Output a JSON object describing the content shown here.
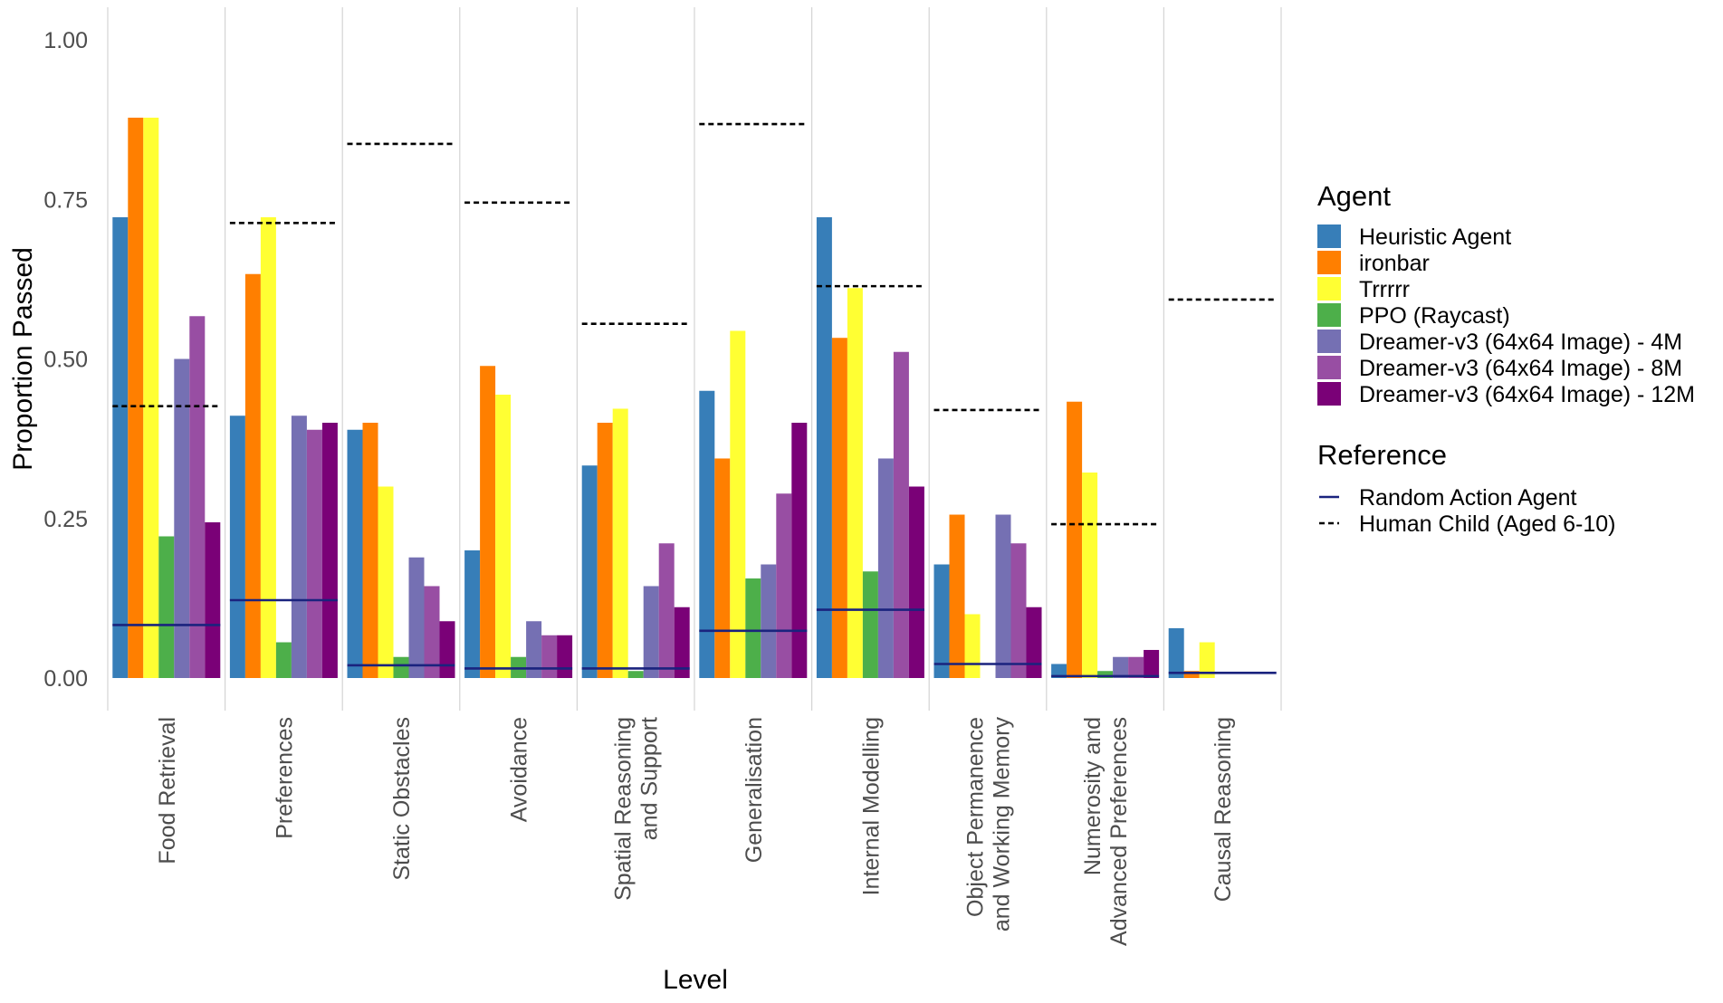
{
  "chart_data": {
    "type": "bar",
    "title": "",
    "xlabel": "Level",
    "ylabel": "Proportion Passed",
    "ylim": [
      -0.05,
      1.03
    ],
    "yticks": [
      0.0,
      0.25,
      0.5,
      0.75,
      1.0
    ],
    "ytick_labels": [
      "0.00",
      "0.25",
      "0.50",
      "0.75",
      "1.00"
    ],
    "grid": "vertical-only",
    "categories": [
      [
        "Food Retrieval"
      ],
      [
        "Preferences"
      ],
      [
        "Static Obstacles"
      ],
      [
        "Avoidance"
      ],
      [
        "Spatial Reasoning",
        "and Support"
      ],
      [
        "Generalisation"
      ],
      [
        "Internal Modelling"
      ],
      [
        "Object Permanence",
        "and Working Memory"
      ],
      [
        "Numerosity and",
        "Advanced Preferences"
      ],
      [
        "Causal Reasoning"
      ]
    ],
    "series": [
      {
        "name": "Heuristic Agent",
        "color": "#377EB8",
        "values": [
          0.722,
          0.411,
          0.389,
          0.2,
          0.333,
          0.45,
          0.722,
          0.178,
          0.022,
          0.078
        ]
      },
      {
        "name": "ironbar",
        "color": "#FF7F00",
        "values": [
          0.878,
          0.633,
          0.4,
          0.489,
          0.4,
          0.344,
          0.533,
          0.256,
          0.433,
          0.011
        ]
      },
      {
        "name": "Trrrrr",
        "color": "#FFFF33",
        "values": [
          0.878,
          0.722,
          0.3,
          0.444,
          0.422,
          0.544,
          0.611,
          0.1,
          0.322,
          0.056
        ]
      },
      {
        "name": "PPO (Raycast)",
        "color": "#4DAF4A",
        "values": [
          0.222,
          0.056,
          0.033,
          0.033,
          0.011,
          0.156,
          0.167,
          0.0,
          0.011,
          0.0
        ]
      },
      {
        "name": "Dreamer-v3 (64x64 Image) - 4M",
        "color": "#7570B3",
        "values": [
          0.5,
          0.411,
          0.189,
          0.089,
          0.144,
          0.178,
          0.344,
          0.256,
          0.033,
          0.0
        ]
      },
      {
        "name": "Dreamer-v3 (64x64 Image) - 8M",
        "color": "#984EA3",
        "values": [
          0.567,
          0.389,
          0.144,
          0.067,
          0.211,
          0.289,
          0.511,
          0.211,
          0.033,
          0.0
        ]
      },
      {
        "name": "Dreamer-v3 (64x64 Image) - 12M",
        "color": "#7A0177",
        "values": [
          0.244,
          0.4,
          0.089,
          0.067,
          0.111,
          0.4,
          0.3,
          0.111,
          0.044,
          0.0
        ]
      }
    ],
    "reference_lines": [
      {
        "name": "Random Action Agent",
        "style": "solid",
        "color": "#1A237E",
        "values": [
          0.083,
          0.122,
          0.02,
          0.015,
          0.015,
          0.074,
          0.107,
          0.022,
          0.003,
          0.008
        ]
      },
      {
        "name": "Human Child (Aged 6-10)",
        "style": "dashed",
        "color": "#000000",
        "values": [
          0.426,
          0.713,
          0.837,
          0.745,
          0.555,
          0.868,
          0.614,
          0.42,
          0.241,
          0.593
        ]
      }
    ],
    "legend": {
      "position": "right",
      "agent_title": "Agent",
      "reference_title": "Reference"
    }
  }
}
